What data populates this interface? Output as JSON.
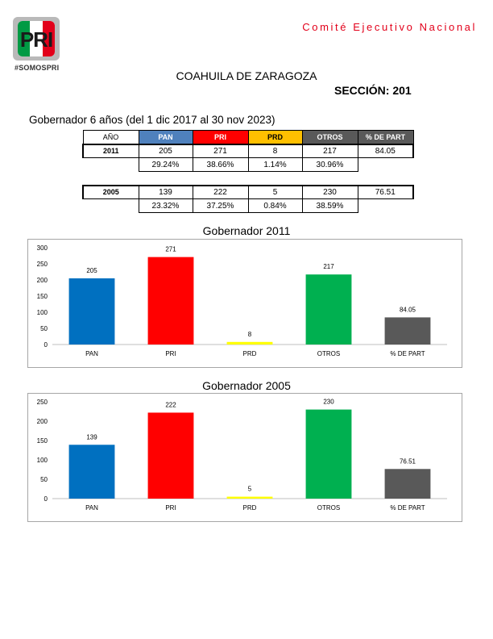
{
  "header": {
    "logo_text": "PRI",
    "hashtag": "#SOMOSPRI",
    "committee": "Comité Ejecutivo Nacional",
    "state": "COAHUILA DE ZARAGOZA",
    "section": "SECCIÓN: 201"
  },
  "subtitle": "Gobernador 6 años (del 1 dic 2017 al 30 nov 2023)",
  "table": {
    "headers": [
      "AÑO",
      "PAN",
      "PRI",
      "PRD",
      "OTROS",
      "% DE PART"
    ],
    "rows": [
      {
        "year": "2011",
        "votes": [
          "205",
          "271",
          "8",
          "217"
        ],
        "part": "84.05",
        "pct": [
          "29.24%",
          "38.66%",
          "1.14%",
          "30.96%"
        ]
      },
      {
        "year": "2005",
        "votes": [
          "139",
          "222",
          "5",
          "230"
        ],
        "part": "76.51",
        "pct": [
          "23.32%",
          "37.25%",
          "0.84%",
          "38.59%"
        ]
      }
    ]
  },
  "colors": {
    "pan": "#0070c0",
    "pri": "#ff0000",
    "prd": "#ffff00",
    "otros": "#00b050",
    "part": "#595959"
  },
  "chart_data": [
    {
      "type": "bar",
      "title": "Gobernador  2011",
      "categories": [
        "PAN",
        "PRI",
        "PRD",
        "OTROS",
        "% DE PART"
      ],
      "values": [
        205,
        271,
        8,
        217,
        84.05
      ],
      "value_labels": [
        "205",
        "271",
        "8",
        "217",
        "84.05"
      ],
      "yticks": [
        "0",
        "50",
        "100",
        "150",
        "200",
        "250",
        "300"
      ],
      "ylim": [
        0,
        300
      ],
      "grid": false,
      "legend": "none"
    },
    {
      "type": "bar",
      "title": "Gobernador  2005",
      "categories": [
        "PAN",
        "PRI",
        "PRD",
        "OTROS",
        "% DE PART"
      ],
      "values": [
        139,
        222,
        5,
        230,
        76.51
      ],
      "value_labels": [
        "139",
        "222",
        "5",
        "230",
        "76.51"
      ],
      "yticks": [
        "0",
        "50",
        "100",
        "150",
        "200",
        "250"
      ],
      "ylim": [
        0,
        250
      ],
      "grid": false,
      "legend": "none"
    }
  ]
}
